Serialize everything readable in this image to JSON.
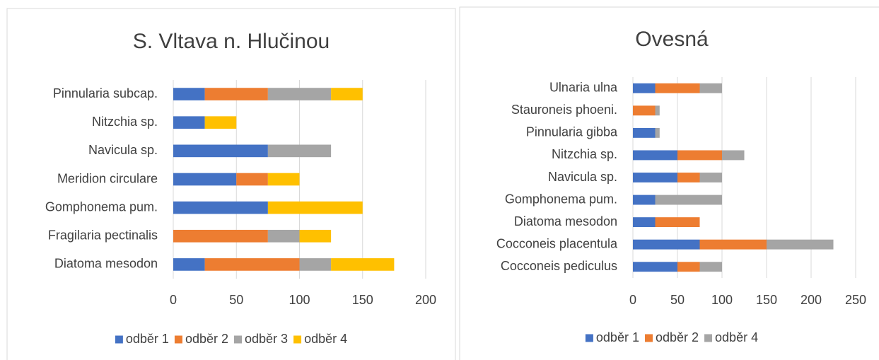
{
  "chart_data": [
    {
      "type": "stacked_barh",
      "title": "S. Vltava n. Hlučinou",
      "categories": [
        "Pinnularia subcap.",
        "Nitzchia sp.",
        "Navicula sp.",
        "Meridion circulare",
        "Gomphonema pum.",
        "Fragilaria pectinalis",
        "Diatoma mesodon"
      ],
      "series": [
        {
          "name": "odběr 1",
          "color": "#4472c4",
          "values": [
            25,
            25,
            75,
            50,
            75,
            0,
            25
          ]
        },
        {
          "name": "odběr 2",
          "color": "#ed7d31",
          "values": [
            50,
            0,
            0,
            25,
            0,
            75,
            75
          ]
        },
        {
          "name": "odběr 3",
          "color": "#a5a5a5",
          "values": [
            50,
            0,
            50,
            0,
            0,
            25,
            25
          ]
        },
        {
          "name": "odběr 4",
          "color": "#ffc000",
          "values": [
            25,
            25,
            0,
            25,
            75,
            25,
            50
          ]
        }
      ],
      "xlim": [
        0,
        200
      ],
      "xticks": [
        0,
        50,
        100,
        150,
        200
      ],
      "grid": true,
      "legend": "bottom"
    },
    {
      "type": "stacked_barh",
      "title": "Ovesná",
      "categories": [
        "Ulnaria ulna",
        "Stauroneis phoeni.",
        "Pinnularia gibba",
        "Nitzchia sp.",
        "Navicula sp.",
        "Gomphonema pum.",
        "Diatoma mesodon",
        "Cocconeis placentula",
        "Cocconeis pediculus"
      ],
      "series": [
        {
          "name": "odběr 1",
          "color": "#4472c4",
          "values": [
            25,
            0,
            25,
            50,
            50,
            25,
            25,
            75,
            50
          ]
        },
        {
          "name": "odběr 2",
          "color": "#ed7d31",
          "values": [
            50,
            25,
            0,
            50,
            25,
            0,
            50,
            75,
            25
          ]
        },
        {
          "name": "odběr 4",
          "color": "#a5a5a5",
          "values": [
            25,
            5,
            5,
            25,
            25,
            75,
            0,
            75,
            25
          ]
        }
      ],
      "xlim": [
        0,
        250
      ],
      "xticks": [
        0,
        50,
        100,
        150,
        200,
        250
      ],
      "grid": true,
      "legend": "bottom"
    }
  ]
}
